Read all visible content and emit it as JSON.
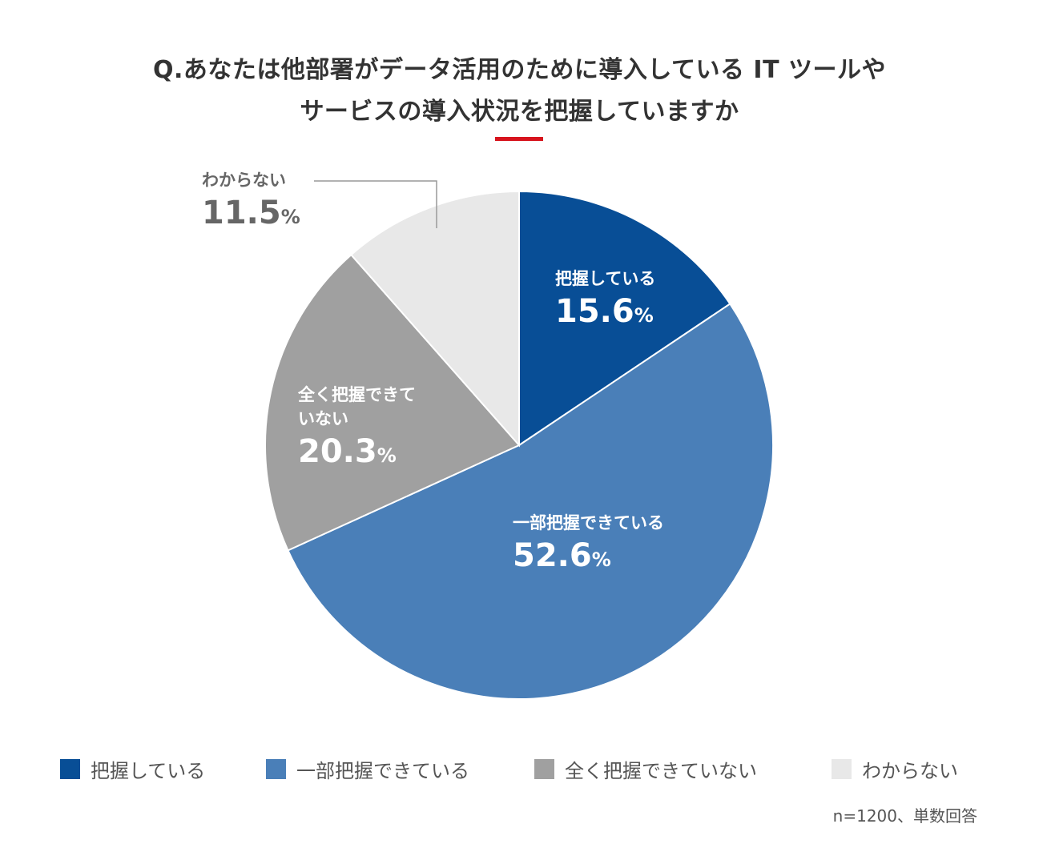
{
  "chart_data": {
    "type": "pie",
    "title_line1": "Q.あなたは他部署がデータ活用のために導入している IT ツールや",
    "title_line2": "サービスの導入状況を把握していますか",
    "slices": [
      {
        "name": "把握している",
        "value": 15.6,
        "label": "15.6",
        "unit": "%",
        "color": "#084e96"
      },
      {
        "name": "一部把握できている",
        "value": 52.6,
        "label": "52.6",
        "unit": "%",
        "color": "#4a7fb8"
      },
      {
        "name": "全く把握できていない",
        "name_line1": "全く把握できて",
        "name_line2": "いない",
        "value": 20.3,
        "label": "20.3",
        "unit": "%",
        "color": "#a0a0a0"
      },
      {
        "name": "わからない",
        "value": 11.5,
        "label": "11.5",
        "unit": "%",
        "color": "#e8e8e8"
      }
    ],
    "start_angle_deg": 0,
    "direction": "clockwise",
    "legend_placement": "bottom",
    "note": "n=1200、単数回答"
  },
  "colors": {
    "accent": "#d7141d",
    "title_text": "#333333",
    "outside_label": "#666666",
    "leader_line": "#999999"
  }
}
